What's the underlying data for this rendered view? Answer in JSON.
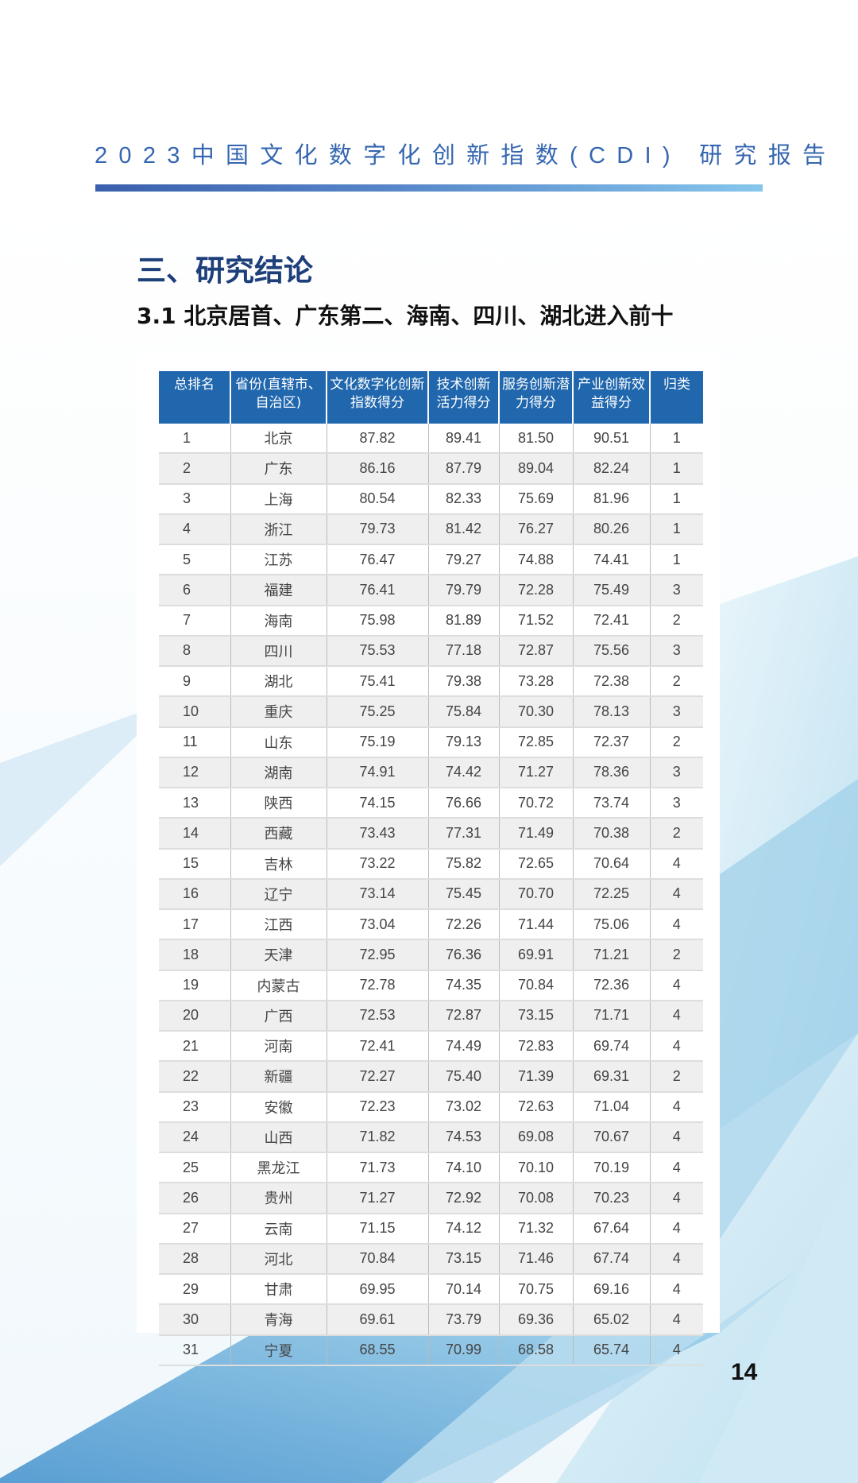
{
  "header": {
    "report_title": "2023中国文化数字化创新指数(CDI) 研究报告"
  },
  "section_title": "三、研究结论",
  "sub_title": "3.1 北京居首、广东第二、海南、四川、湖北进入前十",
  "table": {
    "columns": [
      "总排名",
      "省份(直辖市、自治区)",
      "文化数字化创新指数得分",
      "技术创新活力得分",
      "服务创新潜力得分",
      "产业创新效益得分",
      "归类"
    ],
    "rows": [
      [
        "1",
        "北京",
        "87.82",
        "89.41",
        "81.50",
        "90.51",
        "1"
      ],
      [
        "2",
        "广东",
        "86.16",
        "87.79",
        "89.04",
        "82.24",
        "1"
      ],
      [
        "3",
        "上海",
        "80.54",
        "82.33",
        "75.69",
        "81.96",
        "1"
      ],
      [
        "4",
        "浙江",
        "79.73",
        "81.42",
        "76.27",
        "80.26",
        "1"
      ],
      [
        "5",
        "江苏",
        "76.47",
        "79.27",
        "74.88",
        "74.41",
        "1"
      ],
      [
        "6",
        "福建",
        "76.41",
        "79.79",
        "72.28",
        "75.49",
        "3"
      ],
      [
        "7",
        "海南",
        "75.98",
        "81.89",
        "71.52",
        "72.41",
        "2"
      ],
      [
        "8",
        "四川",
        "75.53",
        "77.18",
        "72.87",
        "75.56",
        "3"
      ],
      [
        "9",
        "湖北",
        "75.41",
        "79.38",
        "73.28",
        "72.38",
        "2"
      ],
      [
        "10",
        "重庆",
        "75.25",
        "75.84",
        "70.30",
        "78.13",
        "3"
      ],
      [
        "11",
        "山东",
        "75.19",
        "79.13",
        "72.85",
        "72.37",
        "2"
      ],
      [
        "12",
        "湖南",
        "74.91",
        "74.42",
        "71.27",
        "78.36",
        "3"
      ],
      [
        "13",
        "陕西",
        "74.15",
        "76.66",
        "70.72",
        "73.74",
        "3"
      ],
      [
        "14",
        "西藏",
        "73.43",
        "77.31",
        "71.49",
        "70.38",
        "2"
      ],
      [
        "15",
        "吉林",
        "73.22",
        "75.82",
        "72.65",
        "70.64",
        "4"
      ],
      [
        "16",
        "辽宁",
        "73.14",
        "75.45",
        "70.70",
        "72.25",
        "4"
      ],
      [
        "17",
        "江西",
        "73.04",
        "72.26",
        "71.44",
        "75.06",
        "4"
      ],
      [
        "18",
        "天津",
        "72.95",
        "76.36",
        "69.91",
        "71.21",
        "2"
      ],
      [
        "19",
        "内蒙古",
        "72.78",
        "74.35",
        "70.84",
        "72.36",
        "4"
      ],
      [
        "20",
        "广西",
        "72.53",
        "72.87",
        "73.15",
        "71.71",
        "4"
      ],
      [
        "21",
        "河南",
        "72.41",
        "74.49",
        "72.83",
        "69.74",
        "4"
      ],
      [
        "22",
        "新疆",
        "72.27",
        "75.40",
        "71.39",
        "69.31",
        "2"
      ],
      [
        "23",
        "安徽",
        "72.23",
        "73.02",
        "72.63",
        "71.04",
        "4"
      ],
      [
        "24",
        "山西",
        "71.82",
        "74.53",
        "69.08",
        "70.67",
        "4"
      ],
      [
        "25",
        "黑龙江",
        "71.73",
        "74.10",
        "70.10",
        "70.19",
        "4"
      ],
      [
        "26",
        "贵州",
        "71.27",
        "72.92",
        "70.08",
        "70.23",
        "4"
      ],
      [
        "27",
        "云南",
        "71.15",
        "74.12",
        "71.32",
        "67.64",
        "4"
      ],
      [
        "28",
        "河北",
        "70.84",
        "73.15",
        "71.46",
        "67.74",
        "4"
      ],
      [
        "29",
        "甘肃",
        "69.95",
        "70.14",
        "70.75",
        "69.16",
        "4"
      ],
      [
        "30",
        "青海",
        "69.61",
        "73.79",
        "69.36",
        "65.02",
        "4"
      ],
      [
        "31",
        "宁夏",
        "68.55",
        "70.99",
        "68.58",
        "65.74",
        "4"
      ]
    ]
  },
  "page_number": "14",
  "colors": {
    "accent": "#2067ae",
    "heading": "#1d3f7a",
    "title": "#3566b0"
  }
}
